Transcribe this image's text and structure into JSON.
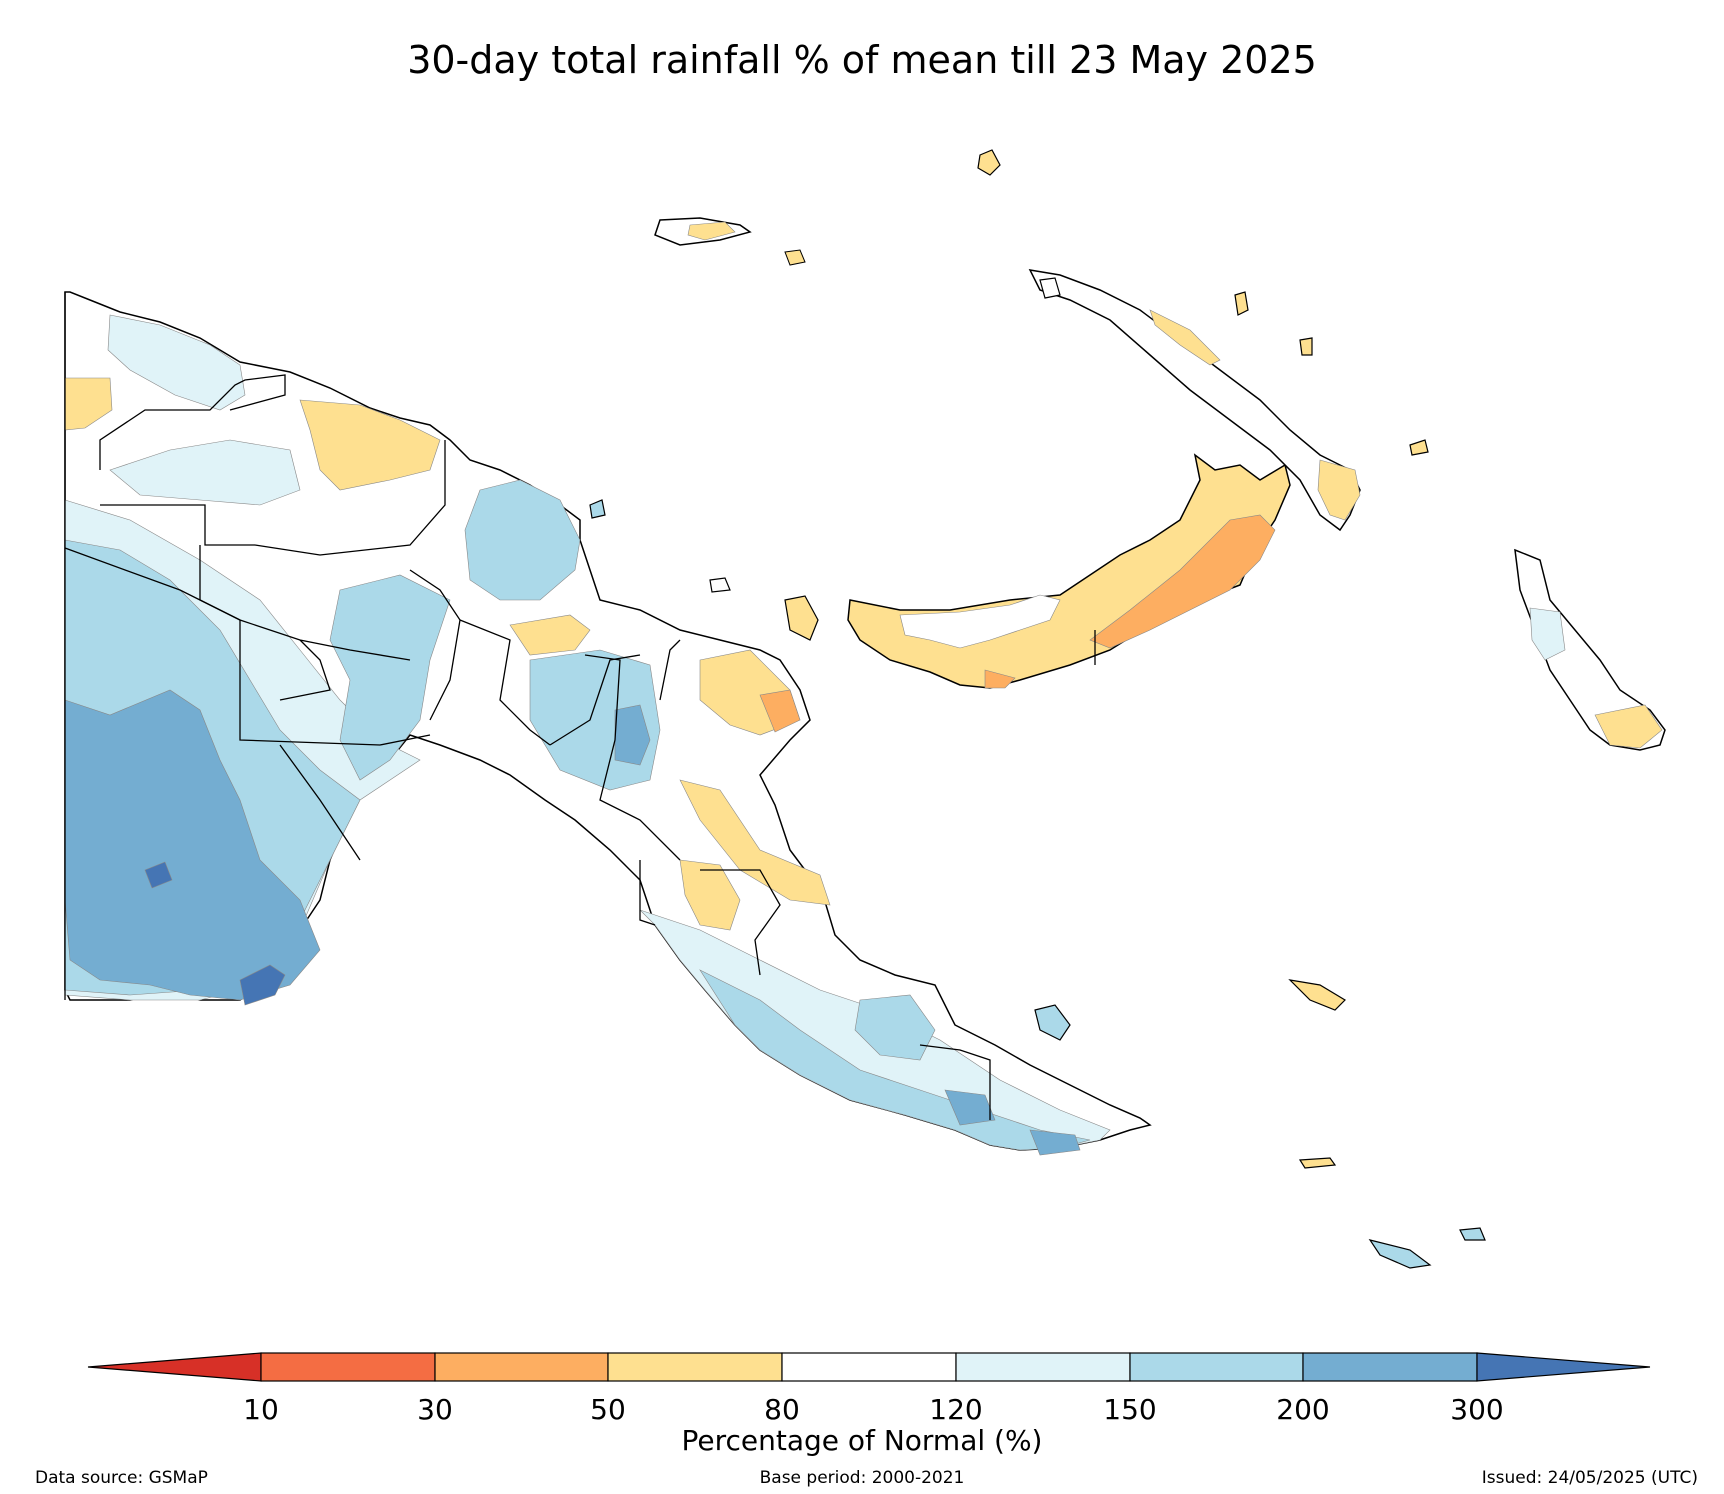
{
  "title": "30-day total rainfall % of mean till 23 May 2025",
  "legend": {
    "title": "Percentage of Normal (%)",
    "ticks": [
      "10",
      "30",
      "50",
      "80",
      "120",
      "150",
      "200",
      "300"
    ],
    "colors": {
      "below_10": "#d73027",
      "10_30": "#f46d43",
      "30_50": "#fdae61",
      "50_80": "#fee090",
      "80_120": "#ffffff",
      "120_150": "#e0f3f8",
      "150_200": "#abd9e9",
      "200_300": "#74add1",
      "above_300": "#4575b4"
    }
  },
  "footer": {
    "source": "Data source: GSMaP",
    "base_period": "Base period: 2000-2021",
    "issued": "Issued: 24/05/2025 (UTC)"
  }
}
